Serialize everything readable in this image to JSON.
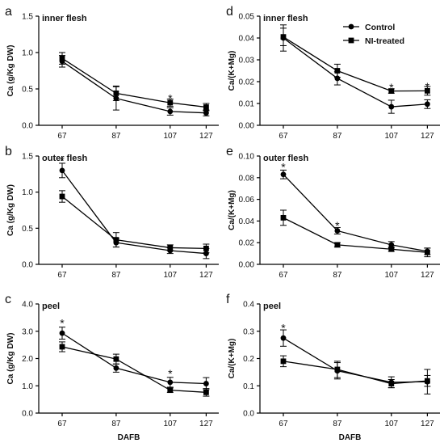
{
  "xlabel": "DAFB",
  "legend": {
    "placement": "top-right",
    "entries": [
      {
        "name": "Control",
        "marker": "circle"
      },
      {
        "name": "NI-treated",
        "marker": "square"
      }
    ]
  },
  "chart_data": [
    {
      "type": "line",
      "letter": "a",
      "title": "inner flesh",
      "ylabel": "Ca (g/Kg DW)",
      "x": [
        67,
        87,
        107,
        127
      ],
      "ylim": [
        0,
        1.5
      ],
      "yticks": [
        "0.0",
        "0.5",
        "1.0",
        "1.5"
      ],
      "series": [
        {
          "name": "Control",
          "marker": "circle",
          "values": [
            0.88,
            0.37,
            0.19,
            0.17
          ],
          "errors": [
            0.08,
            0.16,
            0.05,
            0.04
          ]
        },
        {
          "name": "NI-treated",
          "marker": "square",
          "values": [
            0.92,
            0.44,
            0.31,
            0.25
          ],
          "errors": [
            0.08,
            0.1,
            0.05,
            0.05
          ]
        }
      ],
      "annotations": [
        {
          "x": 107,
          "y": 0.37,
          "text": "*"
        }
      ]
    },
    {
      "type": "line",
      "letter": "d",
      "title": "inner flesh",
      "ylabel": "Ca/(K+Mg)",
      "x": [
        67,
        87,
        107,
        127
      ],
      "ylim": [
        0,
        0.05
      ],
      "yticks": [
        "0.00",
        "0.01",
        "0.02",
        "0.03",
        "0.04",
        "0.05"
      ],
      "series": [
        {
          "name": "Control",
          "marker": "circle",
          "values": [
            0.04,
            0.0215,
            0.0085,
            0.0097
          ],
          "errors": [
            0.006,
            0.003,
            0.003,
            0.002
          ]
        },
        {
          "name": "NI-treated",
          "marker": "square",
          "values": [
            0.0405,
            0.025,
            0.0157,
            0.0158
          ],
          "errors": [
            0.004,
            0.003,
            0.001,
            0.002
          ]
        }
      ],
      "annotations": [
        {
          "x": 107,
          "y": 0.0175,
          "text": "*"
        },
        {
          "x": 127,
          "y": 0.0178,
          "text": "*"
        }
      ]
    },
    {
      "type": "line",
      "letter": "b",
      "title": "outer flesh",
      "ylabel": "Ca (g/Kg DW)",
      "x": [
        67,
        87,
        107,
        127
      ],
      "ylim": [
        0,
        1.5
      ],
      "yticks": [
        "0.0",
        "0.5",
        "1.0",
        "1.5"
      ],
      "series": [
        {
          "name": "Control",
          "marker": "circle",
          "values": [
            1.3,
            0.3,
            0.19,
            0.15
          ],
          "errors": [
            0.1,
            0.06,
            0.04,
            0.07
          ]
        },
        {
          "name": "NI-treated",
          "marker": "square",
          "values": [
            0.94,
            0.34,
            0.23,
            0.22
          ],
          "errors": [
            0.08,
            0.1,
            0.04,
            0.06
          ]
        }
      ],
      "annotations": [
        {
          "x": 67,
          "y": 1.44,
          "text": "*"
        }
      ]
    },
    {
      "type": "line",
      "letter": "e",
      "title": "outer flesh",
      "ylabel": "Ca/(K+Mg)",
      "x": [
        67,
        87,
        107,
        127
      ],
      "ylim": [
        0,
        0.1
      ],
      "yticks": [
        "0.00",
        "0.02",
        "0.04",
        "0.06",
        "0.08",
        "0.10"
      ],
      "series": [
        {
          "name": "Control",
          "marker": "circle",
          "values": [
            0.083,
            0.031,
            0.018,
            0.012
          ],
          "errors": [
            0.004,
            0.003,
            0.003,
            0.003
          ]
        },
        {
          "name": "NI-treated",
          "marker": "square",
          "values": [
            0.043,
            0.018,
            0.014,
            0.011
          ],
          "errors": [
            0.007,
            0.002,
            0.002,
            0.004
          ]
        }
      ],
      "annotations": [
        {
          "x": 67,
          "y": 0.09,
          "text": "*"
        },
        {
          "x": 87,
          "y": 0.036,
          "text": "*"
        }
      ]
    },
    {
      "type": "line",
      "letter": "c",
      "title": "peel",
      "ylabel": "Ca (g/Kg DW)",
      "x": [
        67,
        87,
        107,
        127
      ],
      "ylim": [
        0,
        4.0
      ],
      "yticks": [
        "0.0",
        "1.0",
        "2.0",
        "3.0",
        "4.0"
      ],
      "series": [
        {
          "name": "Control",
          "marker": "circle",
          "values": [
            2.93,
            1.65,
            1.13,
            1.08
          ],
          "errors": [
            0.22,
            0.15,
            0.18,
            0.22
          ]
        },
        {
          "name": "NI-treated",
          "marker": "square",
          "values": [
            2.43,
            1.98,
            0.84,
            0.76
          ],
          "errors": [
            0.18,
            0.18,
            0.08,
            0.14
          ]
        }
      ],
      "annotations": [
        {
          "x": 67,
          "y": 3.3,
          "text": "*"
        },
        {
          "x": 107,
          "y": 1.45,
          "text": "*"
        }
      ]
    },
    {
      "type": "line",
      "letter": "f",
      "title": "peel",
      "ylabel": "Ca/(K+Mg)",
      "x": [
        67,
        87,
        107,
        127
      ],
      "ylim": [
        0,
        0.4
      ],
      "yticks": [
        "0.0",
        "0.1",
        "0.2",
        "0.3",
        "0.4"
      ],
      "series": [
        {
          "name": "Control",
          "marker": "circle",
          "values": [
            0.275,
            0.155,
            0.113,
            0.115
          ],
          "errors": [
            0.03,
            0.03,
            0.02,
            0.045
          ]
        },
        {
          "name": "NI-treated",
          "marker": "square",
          "values": [
            0.19,
            0.16,
            0.108,
            0.118
          ],
          "errors": [
            0.02,
            0.03,
            0.015,
            0.02
          ]
        }
      ],
      "annotations": [
        {
          "x": 67,
          "y": 0.313,
          "text": "*"
        }
      ]
    }
  ]
}
